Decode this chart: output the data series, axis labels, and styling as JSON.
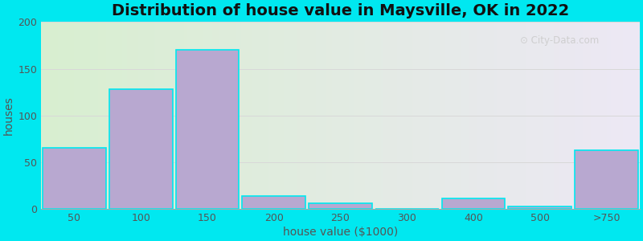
{
  "title": "Distribution of house value in Maysville, OK in 2022",
  "xlabel": "house value ($1000)",
  "ylabel": "houses",
  "categories": [
    "50",
    "100",
    "150",
    "200",
    "250",
    "300",
    "400",
    "500",
    ">750"
  ],
  "values": [
    65,
    128,
    170,
    14,
    6,
    0,
    11,
    2,
    63
  ],
  "bar_color": "#b8a8d0",
  "ylim": [
    0,
    200
  ],
  "yticks": [
    0,
    50,
    100,
    150,
    200
  ],
  "bg_left_color": "#d8efd0",
  "bg_right_color": "#ede8f5",
  "outer_bg": "#00e8f0",
  "title_fontsize": 14,
  "axis_label_fontsize": 10,
  "tick_fontsize": 9,
  "watermark_text": "City-Data.com",
  "grid_color": "#d8d8d8"
}
